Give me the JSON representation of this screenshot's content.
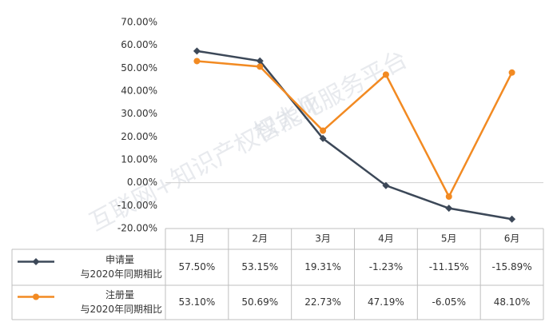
{
  "chart_data": {
    "type": "line",
    "categories": [
      "1月",
      "2月",
      "3月",
      "4月",
      "5月",
      "6月"
    ],
    "ylim": [
      -20,
      70
    ],
    "yticks": [
      {
        "value": -20,
        "label": "-20.00%"
      },
      {
        "value": -10,
        "label": "-10.00%"
      },
      {
        "value": 0,
        "label": "0.00%"
      },
      {
        "value": 10,
        "label": "10.00%"
      },
      {
        "value": 20,
        "label": "20.00%"
      },
      {
        "value": 30,
        "label": "30.00%"
      },
      {
        "value": 40,
        "label": "40.00%"
      },
      {
        "value": 50,
        "label": "50.00%"
      },
      {
        "value": 60,
        "label": "60.00%"
      },
      {
        "value": 70,
        "label": "70.00%"
      }
    ],
    "grid": false,
    "series": [
      {
        "name": "申请量",
        "comparison": "与2020年同期相比",
        "color": "#3c4858",
        "marker": "diamond",
        "values": [
          57.5,
          53.15,
          19.31,
          -1.23,
          -11.15,
          -15.89
        ],
        "value_labels": [
          "57.50%",
          "53.15%",
          "19.31%",
          "-1.23%",
          "-11.15%",
          "-15.89%"
        ]
      },
      {
        "name": "注册量",
        "comparison": "与2020年同期相比",
        "color": "#f28a22",
        "marker": "circle",
        "values": [
          53.1,
          50.69,
          22.73,
          47.19,
          -6.05,
          48.1
        ],
        "value_labels": [
          "53.10%",
          "50.69%",
          "22.73%",
          "47.19%",
          "-6.05%",
          "48.10%"
        ]
      }
    ],
    "watermark": [
      "权大师",
      "互联网+知识产权智能化服务平台"
    ]
  }
}
